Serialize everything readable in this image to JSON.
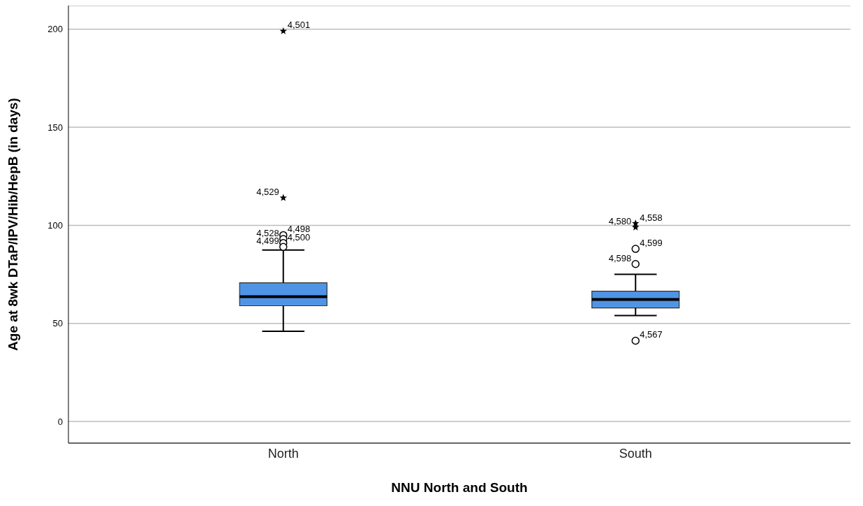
{
  "chart_data": {
    "type": "box",
    "xlabel": "NNU North and South",
    "ylabel": "Age at 8wk DTaP/IPV/Hib/HepB (in days)",
    "categories": [
      "North",
      "South"
    ],
    "boxes": [
      {
        "low": 46,
        "q1": 59,
        "median": 63.6,
        "q3": 70.7,
        "high": 87.4
      },
      {
        "low": 54,
        "q1": 57.9,
        "median": 62.2,
        "q3": 66.4,
        "high": 75
      }
    ],
    "color": "#5095e5",
    "series": [
      {
        "type": "scatter",
        "marker": "star",
        "color": "#000000",
        "x": [
          "North",
          "North",
          "South",
          "South"
        ],
        "values": [
          199,
          114,
          101,
          99
        ]
      },
      {
        "type": "scatter",
        "marker": "circle",
        "color": "#000000",
        "x": [
          "North",
          "North",
          "North",
          "North",
          "South",
          "South",
          "South"
        ],
        "values": [
          95,
          93,
          91,
          89,
          88,
          80.3,
          41.2
        ]
      }
    ],
    "ylim": [
      -11,
      212
    ],
    "yticks": [
      0,
      50,
      100,
      150,
      200
    ],
    "grid": "y",
    "annotations": [
      {
        "text": "4,501",
        "x": "North",
        "y": 199
      },
      {
        "text": "4,529",
        "x": "North",
        "y": 114
      },
      {
        "text": "4,498",
        "x": "North",
        "y": 95
      },
      {
        "text": "4,528",
        "x": "North",
        "y": 93
      },
      {
        "text": "4,500",
        "x": "North",
        "y": 91
      },
      {
        "text": "4,499",
        "x": "North",
        "y": 89
      },
      {
        "text": "4,558",
        "x": "South",
        "y": 101
      },
      {
        "text": "4,580",
        "x": "South",
        "y": 99
      },
      {
        "text": "4,599",
        "x": "South",
        "y": 88
      },
      {
        "text": "4,598",
        "x": "South",
        "y": 80.3
      },
      {
        "text": "4,567",
        "x": "South",
        "y": 41.2
      }
    ]
  }
}
